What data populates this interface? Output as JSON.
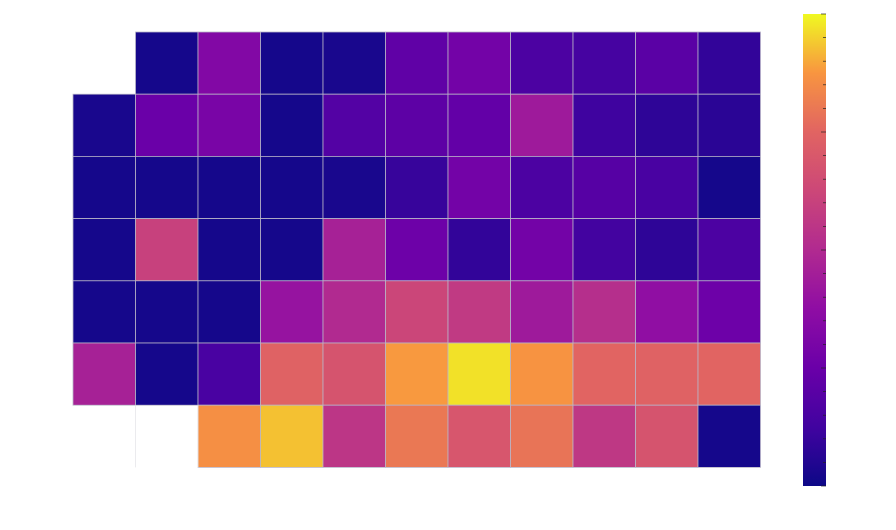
{
  "chart_data": {
    "type": "heatmap",
    "colormap": "plasma",
    "rows": 7,
    "cols": 11,
    "values": [
      [
        null,
        0.02,
        0.33,
        0.02,
        0.03,
        0.22,
        0.28,
        0.16,
        0.14,
        0.2,
        0.09
      ],
      [
        0.03,
        0.25,
        0.3,
        0.02,
        0.18,
        0.21,
        0.23,
        0.43,
        0.12,
        0.08,
        0.07
      ],
      [
        0.02,
        0.02,
        0.02,
        0.02,
        0.03,
        0.1,
        0.28,
        0.16,
        0.19,
        0.15,
        0.02
      ],
      [
        0.02,
        0.6,
        0.02,
        0.02,
        0.46,
        0.26,
        0.09,
        0.28,
        0.13,
        0.08,
        0.16
      ],
      [
        0.02,
        0.02,
        0.02,
        0.4,
        0.5,
        0.62,
        0.57,
        0.43,
        0.52,
        0.38,
        0.26
      ],
      [
        0.46,
        0.02,
        0.15,
        0.74,
        0.68,
        0.88,
        0.97,
        0.87,
        0.75,
        0.74,
        0.75
      ],
      [
        null,
        null,
        0.86,
        0.93,
        0.55,
        0.8,
        0.69,
        0.79,
        0.56,
        0.68,
        0.02
      ]
    ],
    "colorbar": {
      "range": [
        0,
        1
      ],
      "ticks": []
    },
    "grid": true,
    "title": "",
    "xlabel": "",
    "ylabel": ""
  }
}
